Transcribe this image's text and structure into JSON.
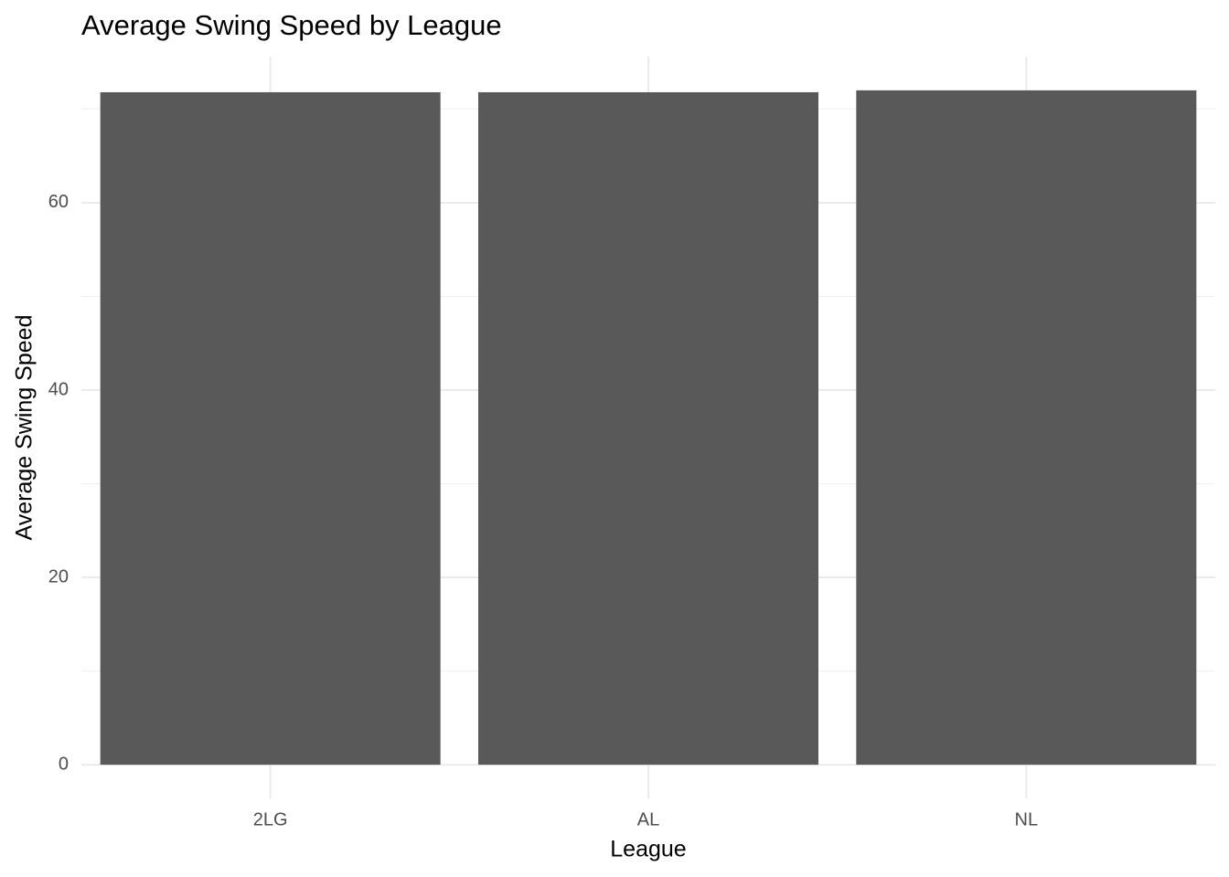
{
  "chart_data": {
    "type": "bar",
    "title": "Average Swing Speed by League",
    "x_label": "League",
    "y_label": "Average Swing Speed",
    "categories": [
      "2LG",
      "AL",
      "NL"
    ],
    "values": [
      71.8,
      71.8,
      72.0
    ],
    "color": "#595959",
    "ylim": [
      -3.6,
      75.6
    ],
    "yticks": [
      0,
      20,
      40,
      60
    ],
    "y_minor_ticks": [
      10,
      30,
      50,
      70
    ],
    "grid": true
  }
}
